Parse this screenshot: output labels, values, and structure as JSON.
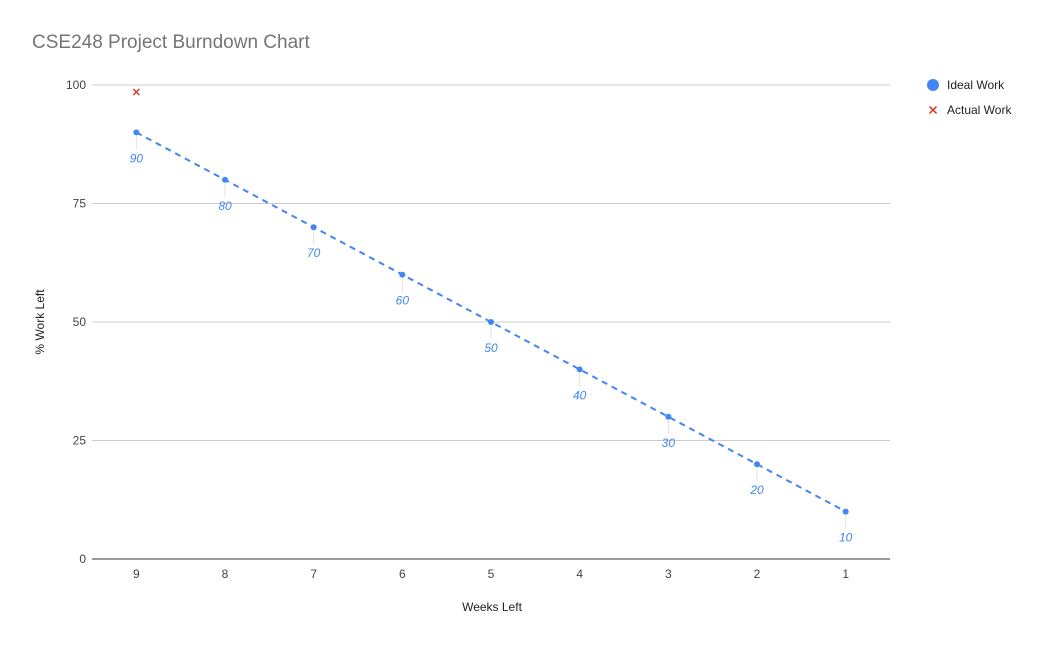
{
  "chart_data": {
    "type": "scatter",
    "title": "CSE248 Project Burndown Chart",
    "xlabel": "Weeks Left",
    "ylabel": "% Work Left",
    "categories": [
      "9",
      "8",
      "7",
      "6",
      "5",
      "4",
      "3",
      "2",
      "1"
    ],
    "ylim": [
      0,
      100
    ],
    "yticks": [
      "0",
      "25",
      "50",
      "75",
      "100"
    ],
    "grid": true,
    "legend_position": "right",
    "series": [
      {
        "name": "Ideal Work",
        "marker": "circle",
        "color": "#4285f4",
        "trendline": "dashed linear",
        "values": [
          90,
          80,
          70,
          60,
          50,
          40,
          30,
          20,
          10
        ],
        "labels": [
          "90",
          "80",
          "70",
          "60",
          "50",
          "40",
          "30",
          "20",
          "10"
        ]
      },
      {
        "name": "Actual Work",
        "marker": "x",
        "color": "#db4437",
        "values": [
          98.5,
          null,
          null,
          null,
          null,
          null,
          null,
          null,
          null
        ]
      }
    ]
  }
}
